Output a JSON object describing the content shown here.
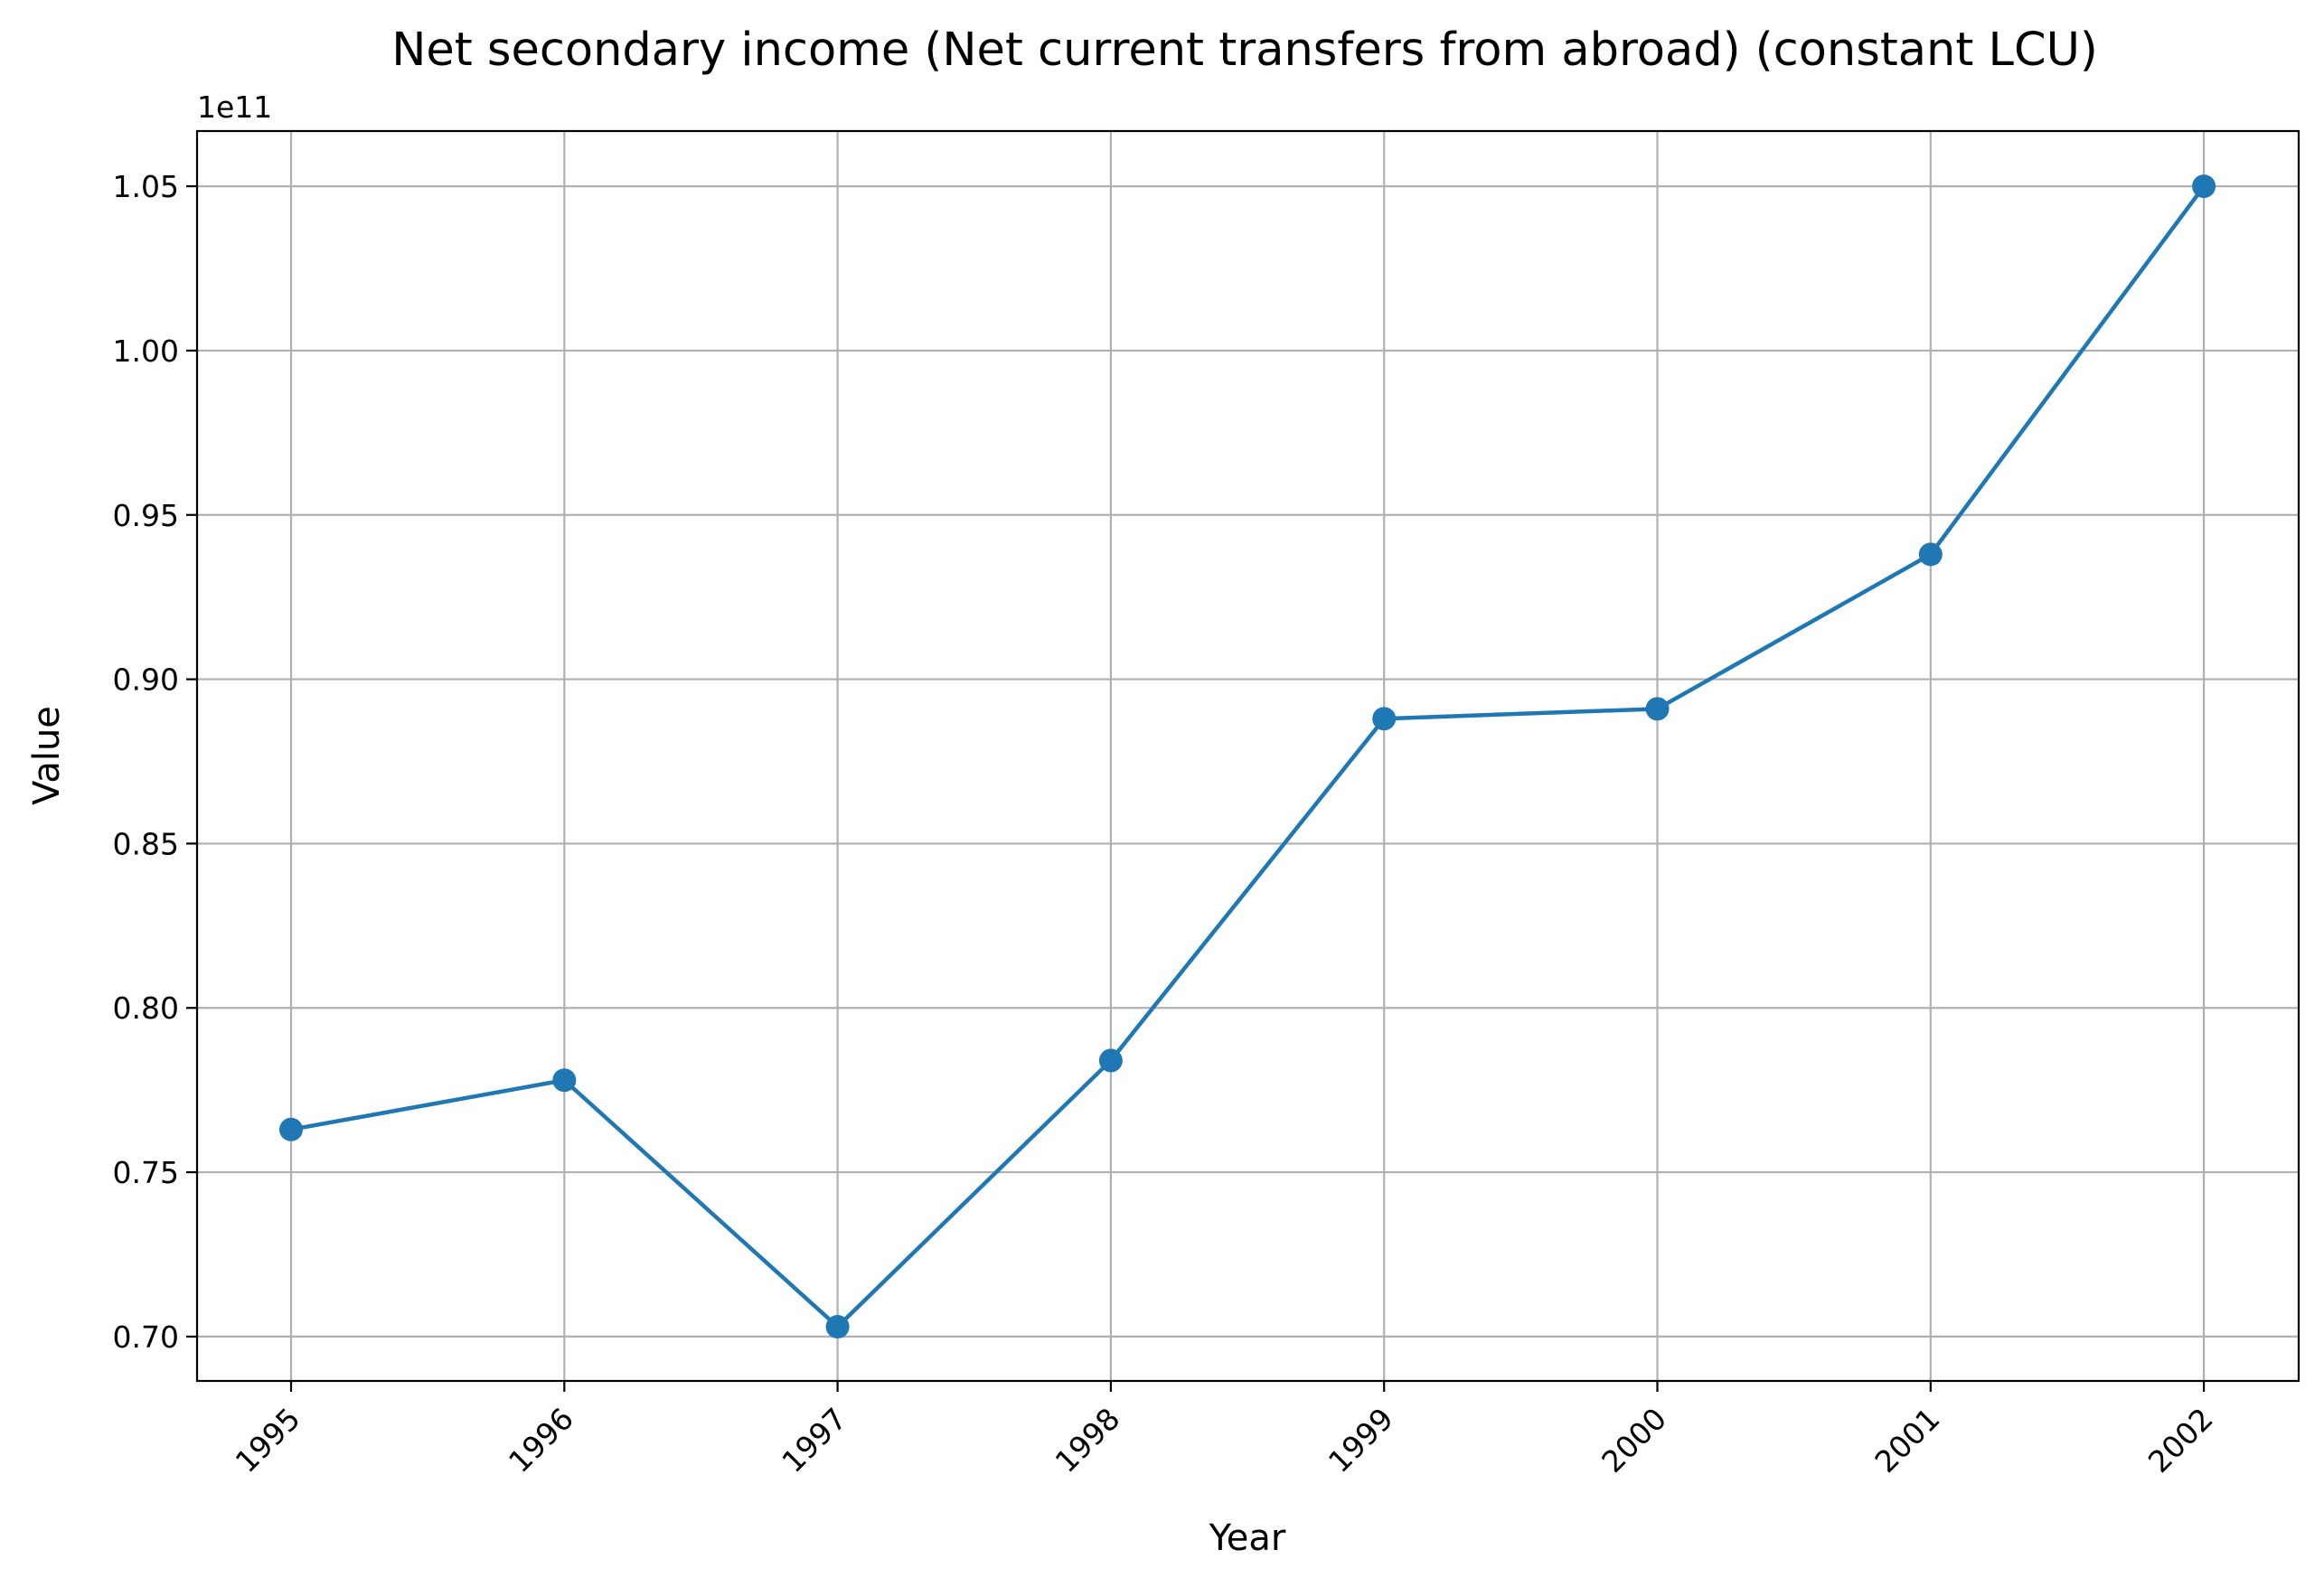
{
  "chart_data": {
    "type": "line",
    "title": "Net secondary income (Net current transfers from abroad) (constant LCU)",
    "xlabel": "Year",
    "ylabel": "Value",
    "y_offset_label": "1e11",
    "x": [
      "1995",
      "1996",
      "1997",
      "1998",
      "1999",
      "2000",
      "2001",
      "2002"
    ],
    "series": [
      {
        "values": [
          0.763,
          0.778,
          0.703,
          0.784,
          0.888,
          0.891,
          0.938,
          1.05
        ],
        "color": "#1f77b4",
        "marker": "circle"
      }
    ],
    "y_ticks": [
      "0.70",
      "0.75",
      "0.80",
      "0.85",
      "0.90",
      "0.95",
      "1.00",
      "1.05"
    ],
    "ylim": [
      0.6865,
      1.0668
    ],
    "grid": true,
    "legend": "none"
  }
}
